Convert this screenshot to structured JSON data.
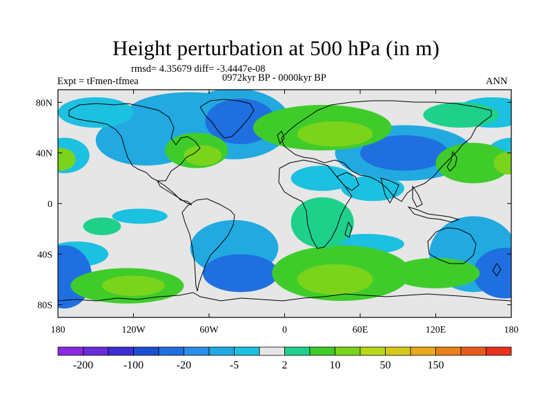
{
  "chart_data": {
    "type": "heatmap",
    "title": "Height perturbation at 500 hPa (in m)",
    "stats_line": "rmsd= 4.35679 diff= -3.4447e-08",
    "experiment": "Expt = tFmen-tfmea",
    "period": "0972kyr BP - 0000kyr BP",
    "season": "ANN",
    "x_ticks": [
      {
        "value": -180,
        "label": "180"
      },
      {
        "value": -120,
        "label": "120W"
      },
      {
        "value": -60,
        "label": "60W"
      },
      {
        "value": 0,
        "label": "0"
      },
      {
        "value": 60,
        "label": "60E"
      },
      {
        "value": 120,
        "label": "120E"
      },
      {
        "value": 180,
        "label": "180"
      }
    ],
    "y_ticks": [
      {
        "value": 80,
        "label": "80N"
      },
      {
        "value": 40,
        "label": "40N"
      },
      {
        "value": 0,
        "label": "0"
      },
      {
        "value": -40,
        "label": "40S"
      },
      {
        "value": -80,
        "label": "80S"
      }
    ],
    "xlim": [
      -180,
      180
    ],
    "ylim": [
      -90,
      90
    ],
    "colorbar": {
      "colors": [
        "#8a2be2",
        "#6a2bd8",
        "#3c2fd4",
        "#1a4fd4",
        "#1f6fe0",
        "#2a8fe8",
        "#22a9e0",
        "#1cc0e0",
        "#e6e6e6",
        "#1fd08a",
        "#3fcc2a",
        "#7bd41c",
        "#b8d81c",
        "#d8c81c",
        "#e8a81c",
        "#e8801c",
        "#e85a1c",
        "#e8321c"
      ],
      "labels": [
        {
          "index": 1,
          "text": "-200"
        },
        {
          "index": 3,
          "text": "-100"
        },
        {
          "index": 5,
          "text": "-20"
        },
        {
          "index": 7,
          "text": "-5"
        },
        {
          "index": 9,
          "text": "2"
        },
        {
          "index": 11,
          "text": "10"
        },
        {
          "index": 13,
          "text": "50"
        },
        {
          "index": 15,
          "text": "150"
        }
      ]
    },
    "level_colors": {
      "neutral": "#e6e6e6",
      "neg_weak": "#1cc0e0",
      "neg_mid": "#22a9e0",
      "neg_strong": "#1f6fe0",
      "pos_weak": "#1fd08a",
      "pos_mid": "#3fcc2a",
      "pos_strong": "#7bd41c",
      "pos_max": "#b8d81c"
    },
    "anomalies": [
      {
        "lon": -75,
        "lat": 72,
        "rlon": 50,
        "rlat": 16,
        "value": -8
      },
      {
        "lon": -110,
        "lat": 50,
        "rlon": 40,
        "rlat": 20,
        "value": -8
      },
      {
        "lon": -150,
        "lat": 72,
        "rlon": 30,
        "rlat": 12,
        "value": -6
      },
      {
        "lon": -40,
        "lat": 63,
        "rlon": 45,
        "rlat": 28,
        "value": -14
      },
      {
        "lon": -35,
        "lat": 65,
        "rlon": 28,
        "rlat": 18,
        "value": -30
      },
      {
        "lon": 30,
        "lat": 20,
        "rlon": 25,
        "rlat": 10,
        "value": -5
      },
      {
        "lon": 70,
        "lat": 12,
        "rlon": 25,
        "rlat": 10,
        "value": -5
      },
      {
        "lon": 95,
        "lat": 40,
        "rlon": 55,
        "rlat": 22,
        "value": -10
      },
      {
        "lon": 95,
        "lat": 40,
        "rlon": 35,
        "rlat": 14,
        "value": -30
      },
      {
        "lon": -175,
        "lat": 38,
        "rlon": 20,
        "rlat": 14,
        "value": -5
      },
      {
        "lon": 180,
        "lat": 38,
        "rlon": 20,
        "rlat": 14,
        "value": -5
      },
      {
        "lon": 165,
        "lat": 72,
        "rlon": 30,
        "rlat": 12,
        "value": -6
      },
      {
        "lon": -165,
        "lat": -40,
        "rlon": 25,
        "rlat": 10,
        "value": -5
      },
      {
        "lon": -115,
        "lat": -10,
        "rlon": 22,
        "rlat": 6,
        "value": -5
      },
      {
        "lon": -40,
        "lat": -35,
        "rlon": 35,
        "rlat": 22,
        "value": -8
      },
      {
        "lon": -35,
        "lat": -55,
        "rlon": 30,
        "rlat": 15,
        "value": -30
      },
      {
        "lon": 65,
        "lat": -32,
        "rlon": 30,
        "rlat": 8,
        "value": -5
      },
      {
        "lon": 150,
        "lat": -40,
        "rlon": 35,
        "rlat": 30,
        "value": -8
      },
      {
        "lon": 175,
        "lat": -55,
        "rlon": 25,
        "rlat": 20,
        "value": -30
      },
      {
        "lon": -175,
        "lat": -58,
        "rlon": 22,
        "rlat": 25,
        "value": -30
      },
      {
        "lon": -70,
        "lat": 42,
        "rlon": 25,
        "rlat": 14,
        "value": 6
      },
      {
        "lon": -65,
        "lat": 38,
        "rlon": 15,
        "rlat": 8,
        "value": 12
      },
      {
        "lon": 30,
        "lat": 60,
        "rlon": 55,
        "rlat": 18,
        "value": 6
      },
      {
        "lon": 40,
        "lat": 55,
        "rlon": 30,
        "rlat": 10,
        "value": 12
      },
      {
        "lon": 140,
        "lat": 70,
        "rlon": 30,
        "rlat": 10,
        "value": 4
      },
      {
        "lon": 150,
        "lat": 32,
        "rlon": 30,
        "rlat": 16,
        "value": 5
      },
      {
        "lon": -178,
        "lat": 35,
        "rlon": 12,
        "rlat": 9,
        "value": 12
      },
      {
        "lon": 178,
        "lat": 32,
        "rlon": 12,
        "rlat": 9,
        "value": 12
      },
      {
        "lon": -125,
        "lat": -65,
        "rlon": 45,
        "rlat": 14,
        "value": 8
      },
      {
        "lon": -120,
        "lat": -65,
        "rlon": 25,
        "rlat": 8,
        "value": 12
      },
      {
        "lon": 45,
        "lat": -55,
        "rlon": 55,
        "rlat": 22,
        "value": 7
      },
      {
        "lon": 40,
        "lat": -60,
        "rlon": 30,
        "rlat": 12,
        "value": 12
      },
      {
        "lon": 120,
        "lat": -55,
        "rlon": 35,
        "rlat": 12,
        "value": 7
      },
      {
        "lon": 30,
        "lat": -15,
        "rlon": 25,
        "rlat": 20,
        "value": 4
      },
      {
        "lon": -145,
        "lat": -18,
        "rlon": 15,
        "rlat": 7,
        "value": 3
      }
    ]
  }
}
